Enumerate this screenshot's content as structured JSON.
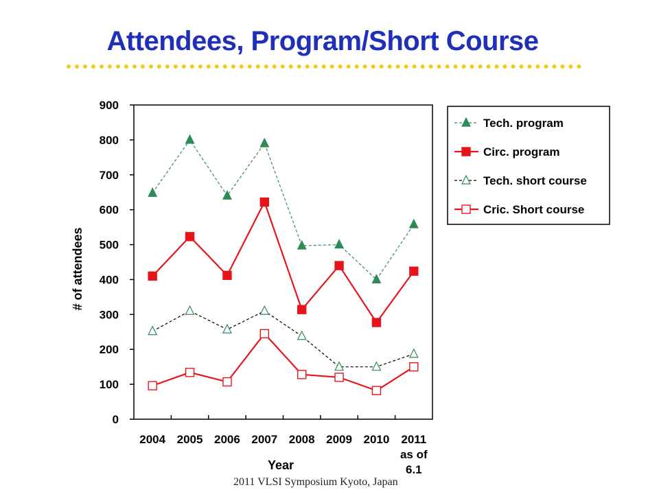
{
  "slide": {
    "title": "Attendees, Program/Short Course",
    "footer": "2011 VLSI Symposium  Kyoto, Japan"
  },
  "colors": {
    "title": "#1f2fb8",
    "rule": "#f0cc1a",
    "green": "#2e8b57",
    "red": "#e8141c",
    "black": "#000000"
  },
  "chart_data": {
    "type": "line",
    "title": "",
    "xlabel": "Year",
    "ylabel": "# of attendees",
    "categories": [
      "2004",
      "2005",
      "2006",
      "2007",
      "2008",
      "2009",
      "2010",
      "2011\nas of\n6.1"
    ],
    "ylim": [
      0,
      900
    ],
    "yticks": [
      0,
      100,
      200,
      300,
      400,
      500,
      600,
      700,
      800,
      900
    ],
    "grid": false,
    "legend_position": "right",
    "series": [
      {
        "name": "Tech. program",
        "values": [
          648,
          800,
          640,
          790,
          497,
          500,
          400,
          558
        ],
        "color": "#2e8b57",
        "marker": "filled-triangle",
        "line": "dashed"
      },
      {
        "name": "Circ. program",
        "values": [
          410,
          523,
          412,
          622,
          314,
          440,
          277,
          424
        ],
        "color": "#e8141c",
        "marker": "filled-square",
        "line": "solid"
      },
      {
        "name": "Tech. short course",
        "values": [
          252,
          310,
          257,
          310,
          238,
          150,
          150,
          187
        ],
        "color": "#2e8b57",
        "marker": "open-triangle",
        "line": "dashed-black"
      },
      {
        "name": "Cric. Short course",
        "values": [
          96,
          134,
          107,
          245,
          128,
          120,
          82,
          150
        ],
        "color": "#e8141c",
        "marker": "open-square",
        "line": "solid"
      }
    ]
  }
}
